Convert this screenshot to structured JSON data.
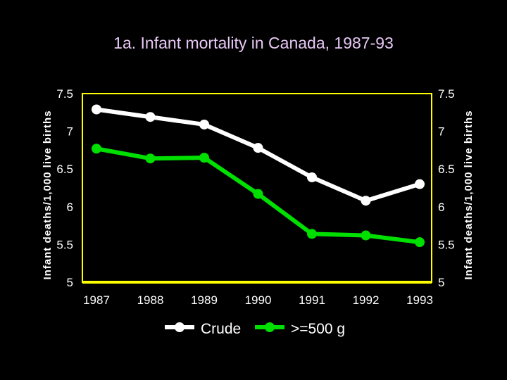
{
  "chart_data": {
    "type": "line",
    "title": "1a. Infant mortality in Canada, 1987-93",
    "xlabel": "",
    "ylabel": "Infant deaths/1,000 live births",
    "ylabel_right": "Infant deaths/1,000 live births",
    "categories": [
      "1987",
      "1988",
      "1989",
      "1990",
      "1991",
      "1992",
      "1993"
    ],
    "y_ticks": [
      "5",
      "5.5",
      "6",
      "6.5",
      "7",
      "7.5"
    ],
    "ylim": [
      5,
      7.5
    ],
    "grid": false,
    "legend_position": "bottom",
    "series": [
      {
        "name": "Crude",
        "color": "#ffffff",
        "values": [
          7.29,
          7.19,
          7.09,
          6.78,
          6.39,
          6.08,
          6.3
        ]
      },
      {
        "name": ">=500 g",
        "color": "#00e000",
        "values": [
          6.77,
          6.64,
          6.65,
          6.17,
          5.64,
          5.62,
          5.53
        ]
      }
    ],
    "frame_color": "#ffff00",
    "text_color": "#ffffff"
  }
}
